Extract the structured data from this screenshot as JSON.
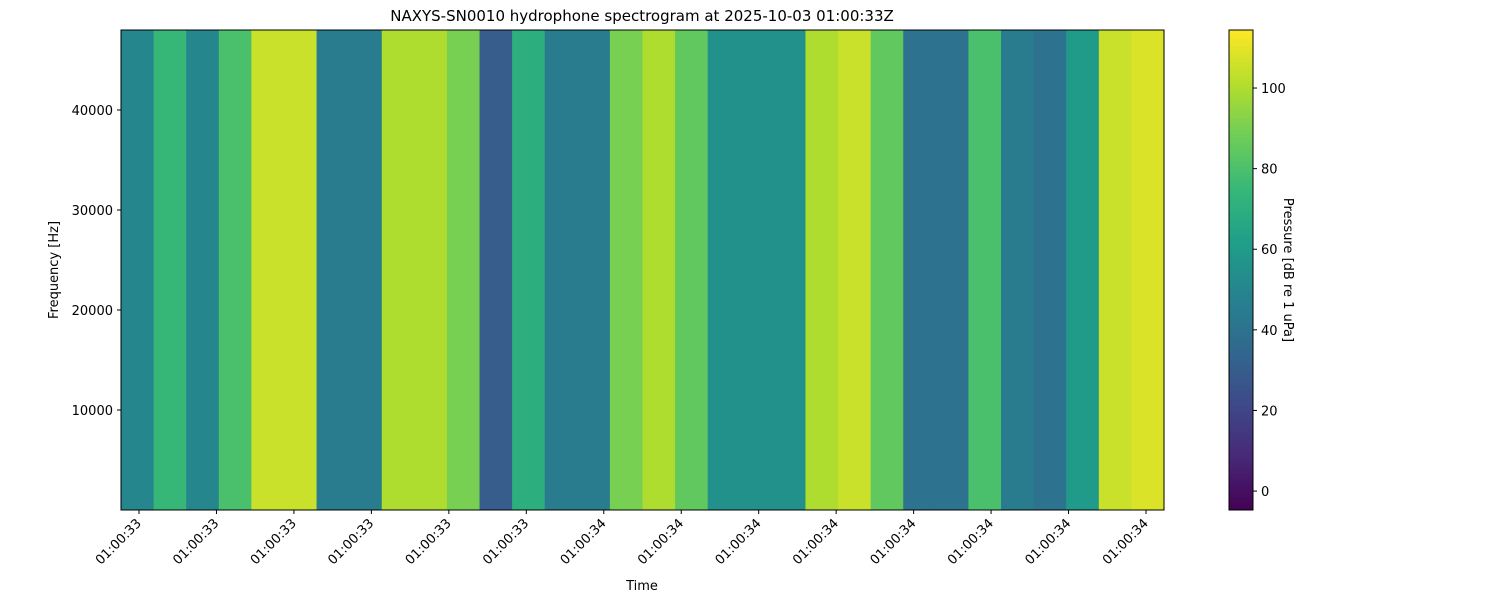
{
  "chart_data": {
    "type": "heatmap",
    "title": "NAXYS-SN0010 hydrophone spectrogram at 2025-10-03 01:00:33Z",
    "xlabel": "Time",
    "ylabel": "Frequency [Hz]",
    "colorbar_label": "Pressure [dB re 1 uPa]",
    "colormap": "viridis",
    "x_tick_labels": [
      "01:00:33",
      "01:00:33",
      "01:00:33",
      "01:00:33",
      "01:00:33",
      "01:00:33",
      "01:00:34",
      "01:00:34",
      "01:00:34",
      "01:00:34",
      "01:00:34",
      "01:00:34",
      "01:00:34",
      "01:00:34"
    ],
    "ylim": [
      0,
      48000
    ],
    "yticks": [
      10000,
      20000,
      30000,
      40000
    ],
    "clim": [
      -4.7,
      114.4
    ],
    "cticks": [
      0,
      20,
      40,
      60,
      80,
      100
    ],
    "values": [
      50,
      75,
      50,
      80,
      105,
      105,
      45,
      45,
      100,
      100,
      90,
      30,
      70,
      45,
      45,
      90,
      100,
      85,
      55,
      55,
      55,
      100,
      105,
      85,
      40,
      40,
      80,
      45,
      40,
      60,
      105,
      108
    ]
  }
}
